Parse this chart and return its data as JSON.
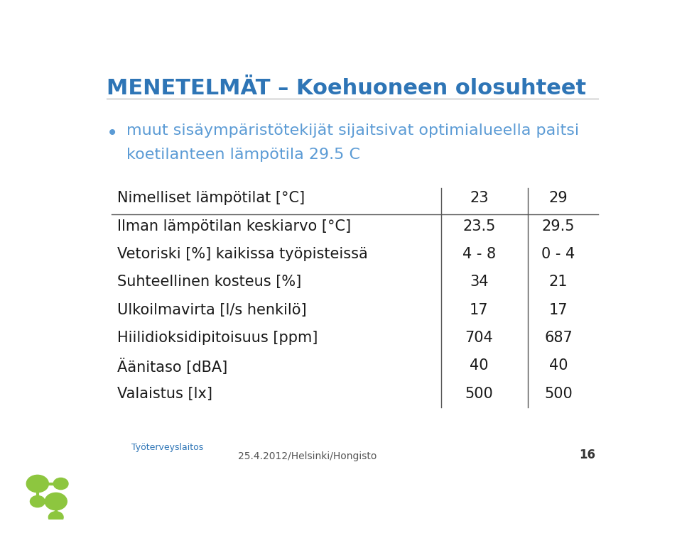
{
  "title": "MENETELMÄT – Koehuoneen olosuhteet",
  "title_color": "#2E75B6",
  "title_fontsize": 22,
  "bullet_text_line1": "muut sisäympäristötekijät sijaitsivat optimialueella paitsi",
  "bullet_text_line2": "koetilanteen lämpötila 29.5 C",
  "bullet_color": "#5B9BD5",
  "bullet_fontsize": 16,
  "table_header_row": [
    "Nimelliset lämpötilat [°C]",
    "23",
    "29"
  ],
  "table_rows": [
    [
      "Ilman lämpötilan keskiarvo [°C]",
      "23.5",
      "29.5"
    ],
    [
      "Vetoriski [%] kaikissa työpisteissä",
      "4 - 8",
      "0 - 4"
    ],
    [
      "Suhteellinen kosteus [%]",
      "34",
      "21"
    ],
    [
      "Ulkoilmavirta [l/s henkilö]",
      "17",
      "17"
    ],
    [
      "Hiilidioksidipitoisuus [ppm]",
      "704",
      "687"
    ],
    [
      "Äänitaso [dBA]",
      "40",
      "40"
    ],
    [
      "Valaistus [lx]",
      "500",
      "500"
    ]
  ],
  "table_fontsize": 15,
  "footer_text": "25.4.2012/Helsinki/Hongisto",
  "page_number": "16",
  "footer_fontsize": 10,
  "bg_color": "#FFFFFF",
  "text_color": "#1a1a1a",
  "logo_green": "#8DC63F",
  "logo_blue": "#2E75B6"
}
